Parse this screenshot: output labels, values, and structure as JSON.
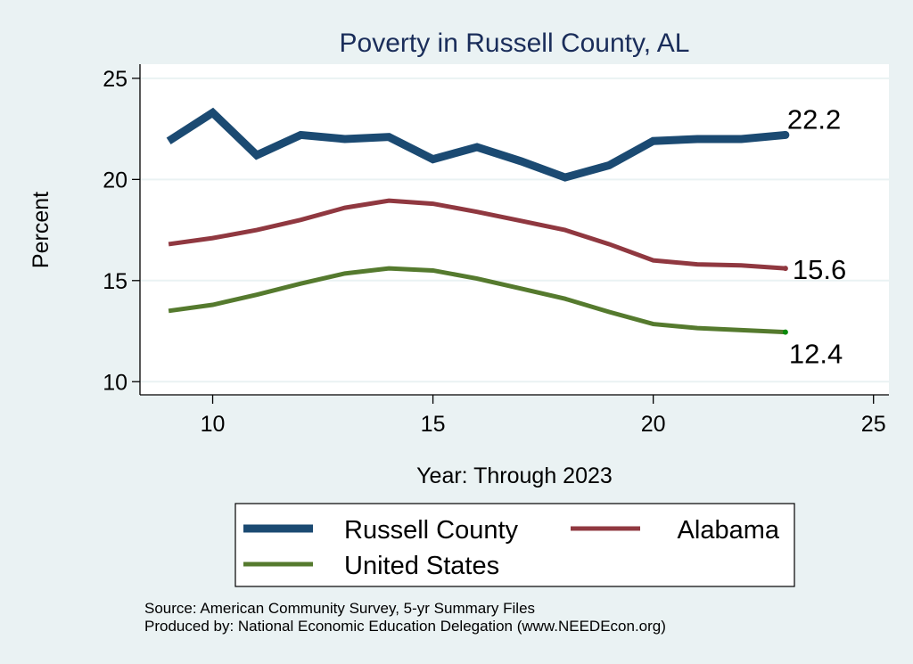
{
  "chart_data": {
    "type": "line",
    "title": "Poverty in Russell County, AL",
    "xlabel": "Year: Through 2023",
    "ylabel": "Percent",
    "xlim": [
      8.35,
      25.35
    ],
    "ylim": [
      9.35,
      25.7
    ],
    "xticks": [
      10,
      15,
      20,
      25
    ],
    "yticks": [
      10,
      15,
      20,
      25
    ],
    "grid": true,
    "legend_position": "bottom",
    "x": [
      9,
      10,
      11,
      12,
      13,
      14,
      15,
      16,
      17,
      18,
      19,
      20,
      21,
      22,
      23
    ],
    "series": [
      {
        "name": "Russell County",
        "color": "#1b4a72",
        "values": [
          21.9,
          23.3,
          21.2,
          22.2,
          22.0,
          22.1,
          21.0,
          21.6,
          20.9,
          20.1,
          20.7,
          21.9,
          22.0,
          22.0,
          22.2
        ],
        "end_label": "22.2"
      },
      {
        "name": "Alabama",
        "color": "#903840",
        "values": [
          16.8,
          17.1,
          17.5,
          18.0,
          18.6,
          18.95,
          18.8,
          18.4,
          17.95,
          17.5,
          16.8,
          16.0,
          15.8,
          15.75,
          15.6
        ],
        "end_label": "15.6"
      },
      {
        "name": "United States",
        "color": "#557a2e",
        "values": [
          13.5,
          13.8,
          14.3,
          14.85,
          15.35,
          15.6,
          15.5,
          15.1,
          14.6,
          14.1,
          13.45,
          12.85,
          12.65,
          12.55,
          12.45
        ],
        "end_label": "12.4"
      }
    ],
    "annotations": [
      "Source: American Community Survey, 5-yr Summary Files",
      "Produced by: National Economic Education Delegation (www.NEEDEcon.org)"
    ]
  },
  "colors": {
    "background": "#eaf2f3",
    "plot_background": "#ffffff",
    "gridline": "#eaf2f3",
    "title": "#1a2d5a",
    "end_marker_us": "#0a8a0a"
  }
}
